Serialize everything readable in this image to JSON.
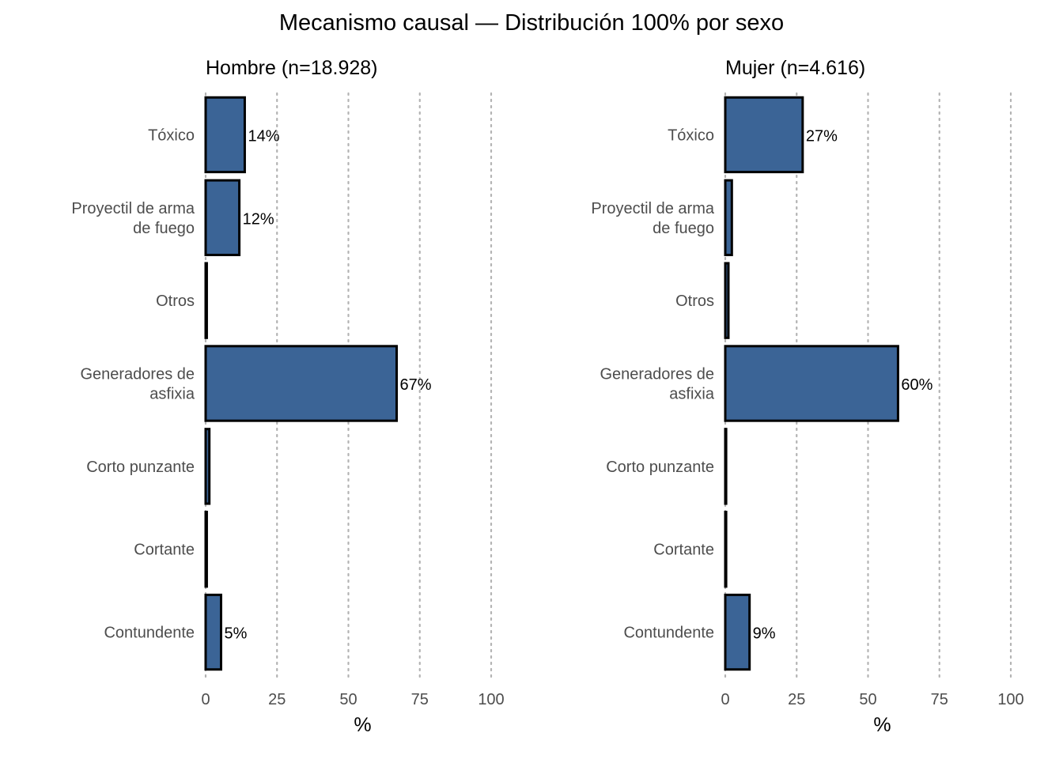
{
  "chart_data": {
    "type": "bar",
    "title": "Mecanismo causal — Distribución 100% por sexo",
    "xlabel": "%",
    "xlim": [
      0,
      100
    ],
    "xticks": [
      0,
      25,
      50,
      75,
      100
    ],
    "grid": true,
    "orientation": "horizontal",
    "bar_color": "#3b6496",
    "categories": [
      "Tóxico",
      "Proyectil de arma de fuego",
      "Otros",
      "Generadores de asfixia",
      "Corto punzante",
      "Cortante",
      "Contundente"
    ],
    "category_lines": [
      [
        "Tóxico"
      ],
      [
        "Proyectil de arma",
        "de fuego"
      ],
      [
        "Otros"
      ],
      [
        "Generadores de",
        "asfixia"
      ],
      [
        "Corto punzante"
      ],
      [
        "Cortante"
      ],
      [
        "Contundente"
      ]
    ],
    "panels": [
      {
        "name": "Hombre  (n=18.928)",
        "values": [
          13.7,
          11.8,
          0.4,
          66.9,
          1.3,
          0.4,
          5.4
        ],
        "labels": [
          "14%",
          "12%",
          "",
          "67%",
          "",
          "",
          "5%"
        ]
      },
      {
        "name": "Mujer  (n=4.616)",
        "values": [
          27.1,
          2.3,
          1.1,
          60.5,
          0.3,
          0.3,
          8.5
        ],
        "labels": [
          "27%",
          "",
          "",
          "60%",
          "",
          "",
          "9%"
        ]
      }
    ]
  }
}
